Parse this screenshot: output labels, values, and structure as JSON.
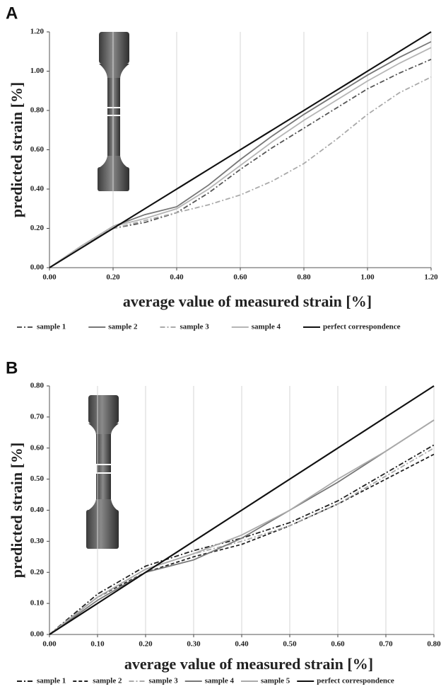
{
  "chart_data": [
    {
      "type": "line",
      "label": "A",
      "xlabel": "average value of measured strain [%]",
      "ylabel": "predicted strain [%]",
      "x": [
        0,
        0.1,
        0.2,
        0.3,
        0.4,
        0.5,
        0.6,
        0.7,
        0.8,
        0.9,
        1.0,
        1.1,
        1.2
      ],
      "series": [
        {
          "name": "sample 1",
          "color": "#555555",
          "dash": "7 3 2 3",
          "values": [
            0,
            0.11,
            0.2,
            0.23,
            0.28,
            0.38,
            0.5,
            0.61,
            0.71,
            0.81,
            0.91,
            0.99,
            1.06
          ]
        },
        {
          "name": "sample 2",
          "color": "#777777",
          "values": [
            0,
            0.11,
            0.21,
            0.27,
            0.31,
            0.42,
            0.55,
            0.67,
            0.78,
            0.88,
            0.98,
            1.07,
            1.15
          ]
        },
        {
          "name": "sample 3",
          "color": "#aaaaaa",
          "dash": "7 3 2 3",
          "values": [
            0,
            0.11,
            0.2,
            0.24,
            0.28,
            0.32,
            0.37,
            0.44,
            0.53,
            0.65,
            0.78,
            0.89,
            0.97
          ]
        },
        {
          "name": "sample 4",
          "color": "#b5b5b5",
          "values": [
            0,
            0.11,
            0.21,
            0.25,
            0.3,
            0.4,
            0.52,
            0.64,
            0.75,
            0.85,
            0.95,
            1.04,
            1.12
          ]
        },
        {
          "name": "perfect correspondence",
          "color": "#111111",
          "values": [
            0,
            0.1,
            0.2,
            0.3,
            0.4,
            0.5,
            0.6,
            0.7,
            0.8,
            0.9,
            1.0,
            1.1,
            1.2
          ]
        }
      ],
      "xlim": [
        0,
        1.2
      ],
      "ylim": [
        0,
        1.2
      ],
      "xticks": [
        {
          "value": 0,
          "label": "0.00"
        },
        {
          "value": 0.2,
          "label": "0.20"
        },
        {
          "value": 0.4,
          "label": "0.40"
        },
        {
          "value": 0.6,
          "label": "0.60"
        },
        {
          "value": 0.8,
          "label": "0.80"
        },
        {
          "value": 1.0,
          "label": "1.00"
        },
        {
          "value": 1.2,
          "label": "1.20"
        }
      ],
      "yticks": [
        {
          "value": 0,
          "label": "0.00"
        },
        {
          "value": 0.2,
          "label": "0.20"
        },
        {
          "value": 0.4,
          "label": "0.40"
        },
        {
          "value": 0.6,
          "label": "0.60"
        },
        {
          "value": 0.8,
          "label": "0.80"
        },
        {
          "value": 1.0,
          "label": "1.00"
        },
        {
          "value": 1.2,
          "label": "1.20"
        }
      ],
      "grid": "x"
    },
    {
      "type": "line",
      "label": "B",
      "xlabel": "average value of measured strain [%]",
      "ylabel": "predicted strain [%]",
      "x": [
        0,
        0.1,
        0.2,
        0.3,
        0.4,
        0.5,
        0.6,
        0.7,
        0.8
      ],
      "series": [
        {
          "name": "sample 1",
          "color": "#222222",
          "dash": "7 3 2 3",
          "values": [
            0,
            0.13,
            0.22,
            0.27,
            0.31,
            0.36,
            0.43,
            0.52,
            0.61
          ]
        },
        {
          "name": "sample 2",
          "color": "#222222",
          "dash": "5 3",
          "values": [
            0,
            0.12,
            0.2,
            0.25,
            0.29,
            0.35,
            0.42,
            0.5,
            0.58
          ]
        },
        {
          "name": "sample 3",
          "color": "#aaaaaa",
          "dash": "7 3 2 3",
          "values": [
            0,
            0.12,
            0.21,
            0.26,
            0.3,
            0.35,
            0.42,
            0.51,
            0.6
          ]
        },
        {
          "name": "sample 4",
          "color": "#777777",
          "values": [
            0,
            0.11,
            0.2,
            0.24,
            0.31,
            0.4,
            0.49,
            0.59,
            0.69
          ]
        },
        {
          "name": "sample 5",
          "color": "#aaaaaa",
          "values": [
            0,
            0.12,
            0.21,
            0.26,
            0.32,
            0.4,
            0.5,
            0.59,
            0.69
          ]
        },
        {
          "name": "perfect correspondence",
          "color": "#111111",
          "values": [
            0,
            0.1,
            0.2,
            0.3,
            0.4,
            0.5,
            0.6,
            0.7,
            0.8
          ]
        }
      ],
      "xlim": [
        0,
        0.8
      ],
      "ylim": [
        0,
        0.8
      ],
      "xticks": [
        {
          "value": 0,
          "label": "0.00"
        },
        {
          "value": 0.1,
          "label": "0.10"
        },
        {
          "value": 0.2,
          "label": "0.20"
        },
        {
          "value": 0.3,
          "label": "0.30"
        },
        {
          "value": 0.4,
          "label": "0.40"
        },
        {
          "value": 0.5,
          "label": "0.50"
        },
        {
          "value": 0.6,
          "label": "0.60"
        },
        {
          "value": 0.7,
          "label": "0.70"
        },
        {
          "value": 0.8,
          "label": "0.80"
        }
      ],
      "yticks": [
        {
          "value": 0,
          "label": "0.00"
        },
        {
          "value": 0.1,
          "label": "0.10"
        },
        {
          "value": 0.2,
          "label": "0.20"
        },
        {
          "value": 0.3,
          "label": "0.30"
        },
        {
          "value": 0.4,
          "label": "0.40"
        },
        {
          "value": 0.5,
          "label": "0.50"
        },
        {
          "value": 0.6,
          "label": "0.60"
        },
        {
          "value": 0.7,
          "label": "0.70"
        },
        {
          "value": 0.8,
          "label": "0.80"
        }
      ],
      "grid": "x"
    }
  ]
}
